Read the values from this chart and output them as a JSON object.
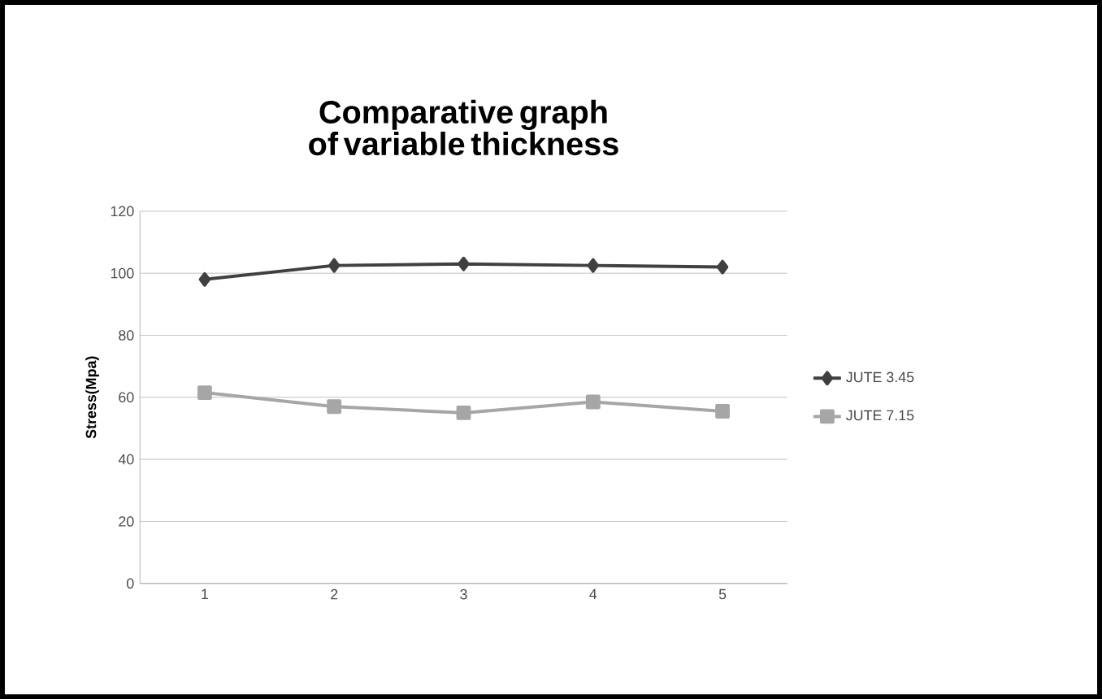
{
  "chart_data": {
    "type": "line",
    "title": "Comparative graph of variable thickness",
    "ylabel": "Stress(Mpa)",
    "categories": [
      "1",
      "2",
      "3",
      "4",
      "5"
    ],
    "series": [
      {
        "name": "JUTE 3.45",
        "color": "#404040",
        "marker": "diamond",
        "values": [
          98,
          102.5,
          103,
          102.5,
          102
        ]
      },
      {
        "name": "JUTE 7.15",
        "color": "#a6a6a6",
        "marker": "square",
        "values": [
          61.5,
          57,
          55,
          58.5,
          55.5
        ]
      }
    ],
    "ylim": [
      0,
      120
    ],
    "yticks": [
      0,
      20,
      40,
      60,
      80,
      100,
      120
    ],
    "grid": "y",
    "legend": "right"
  }
}
